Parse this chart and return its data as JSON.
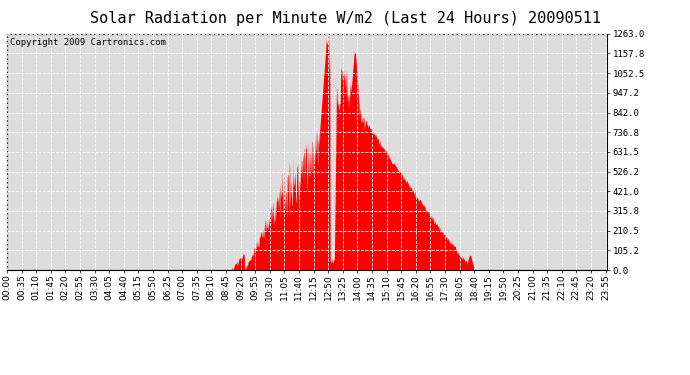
{
  "title": "Solar Radiation per Minute W/m2 (Last 24 Hours) 20090511",
  "copyright_text": "Copyright 2009 Cartronics.com",
  "ymin": 0.0,
  "ymax": 1263.0,
  "yticks": [
    0.0,
    105.2,
    210.5,
    315.8,
    421.0,
    526.2,
    631.5,
    736.8,
    842.0,
    947.2,
    1052.5,
    1157.8,
    1263.0
  ],
  "fill_color": "#FF0000",
  "background_color": "#FFFFFF",
  "plot_bg_color": "#DDDDDD",
  "grid_color": "#FFFFFF",
  "title_fontsize": 11,
  "copyright_fontsize": 6.5,
  "tick_fontsize": 6.5,
  "num_minutes": 1440,
  "xtick_interval": 35
}
